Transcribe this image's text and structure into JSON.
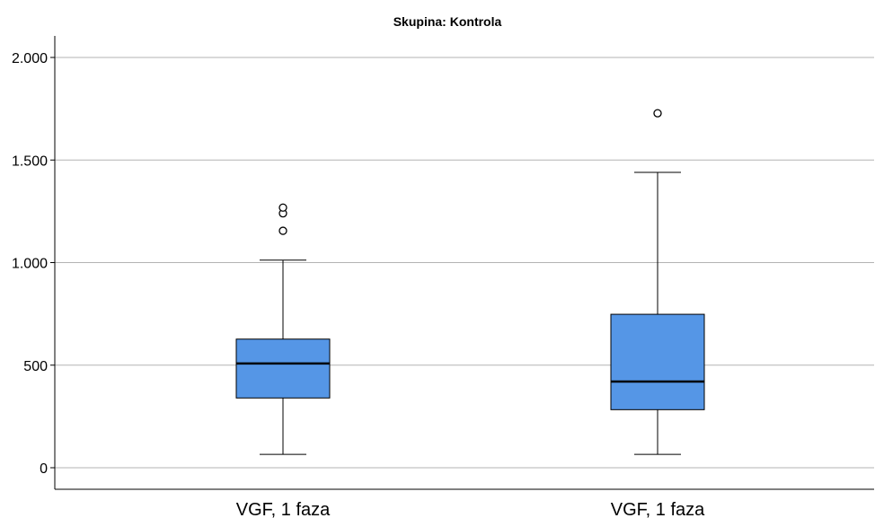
{
  "chart_data": {
    "type": "boxplot",
    "title": "Skupina: Kontrola",
    "xlabel": "",
    "ylabel": "",
    "categories": [
      "VGF, 1 faza",
      "VGF, 1 faza"
    ],
    "ylim": [
      -100,
      2100
    ],
    "yticks": [
      0,
      500,
      1000,
      1500,
      2000
    ],
    "ytick_labels": [
      "0",
      "500",
      "1.000",
      "1.500",
      "2.000"
    ],
    "grid": true,
    "box_color": "#5596e6",
    "boxes": [
      {
        "whisker_low": 65,
        "q1": 340,
        "median": 508,
        "q3": 627,
        "whisker_high": 1012,
        "outliers": [
          1155,
          1240,
          1268
        ]
      },
      {
        "whisker_low": 65,
        "q1": 283,
        "median": 420,
        "q3": 748,
        "whisker_high": 1440,
        "outliers": [
          1728
        ]
      }
    ]
  }
}
